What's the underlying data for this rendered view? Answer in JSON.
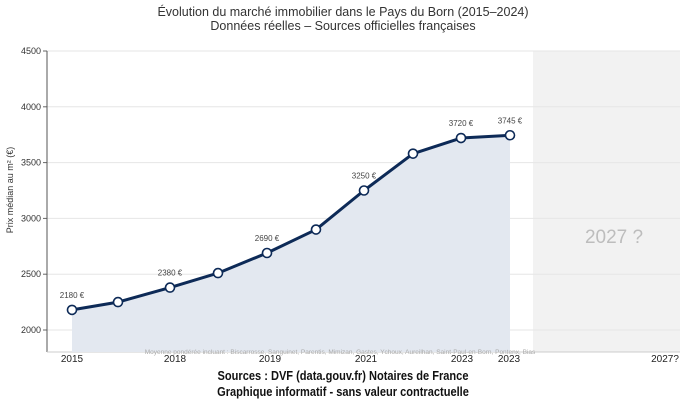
{
  "chart_data": {
    "type": "area",
    "title": "Évolution du marché immobilier dans le Pays du Born (2015–2024)",
    "subtitle": "Données réelles – Sources officielles françaises",
    "ylabel": "Prix médian au m² (€)",
    "ylim": [
      2000,
      4500
    ],
    "yticks": [
      2000,
      2500,
      3000,
      3500,
      4000,
      4500
    ],
    "xtick_labels": [
      "2015",
      "2018",
      "2019",
      "2021",
      "2023",
      "2023",
      "2027?"
    ],
    "values": [
      2180,
      2250,
      2380,
      2510,
      2690,
      2900,
      3250,
      3580,
      3720,
      3745
    ],
    "data_labels": [
      "2180 €",
      "",
      "2380 €",
      "",
      "2690 €",
      "",
      "3250 €",
      "",
      "3720 €",
      "3745 €"
    ],
    "forecast_label": "2027 ?",
    "footnote": "Moyenne pondérée incluant : Biscarrosse, Sanguinet, Parentis, Mimizan, Gastes, Ychoux, Aureilhan, Saint-Paul-en-Born, Pontenx, Bias",
    "grid": true,
    "colors": {
      "line": "#0d2a57",
      "fill": "#e3e8f0",
      "forecast": "#f2f2f2"
    }
  },
  "sources": {
    "line1": "Sources : DVF (data.gouv.fr) Notaires de France",
    "line2": "Graphique informatif - sans valeur contractuelle"
  }
}
